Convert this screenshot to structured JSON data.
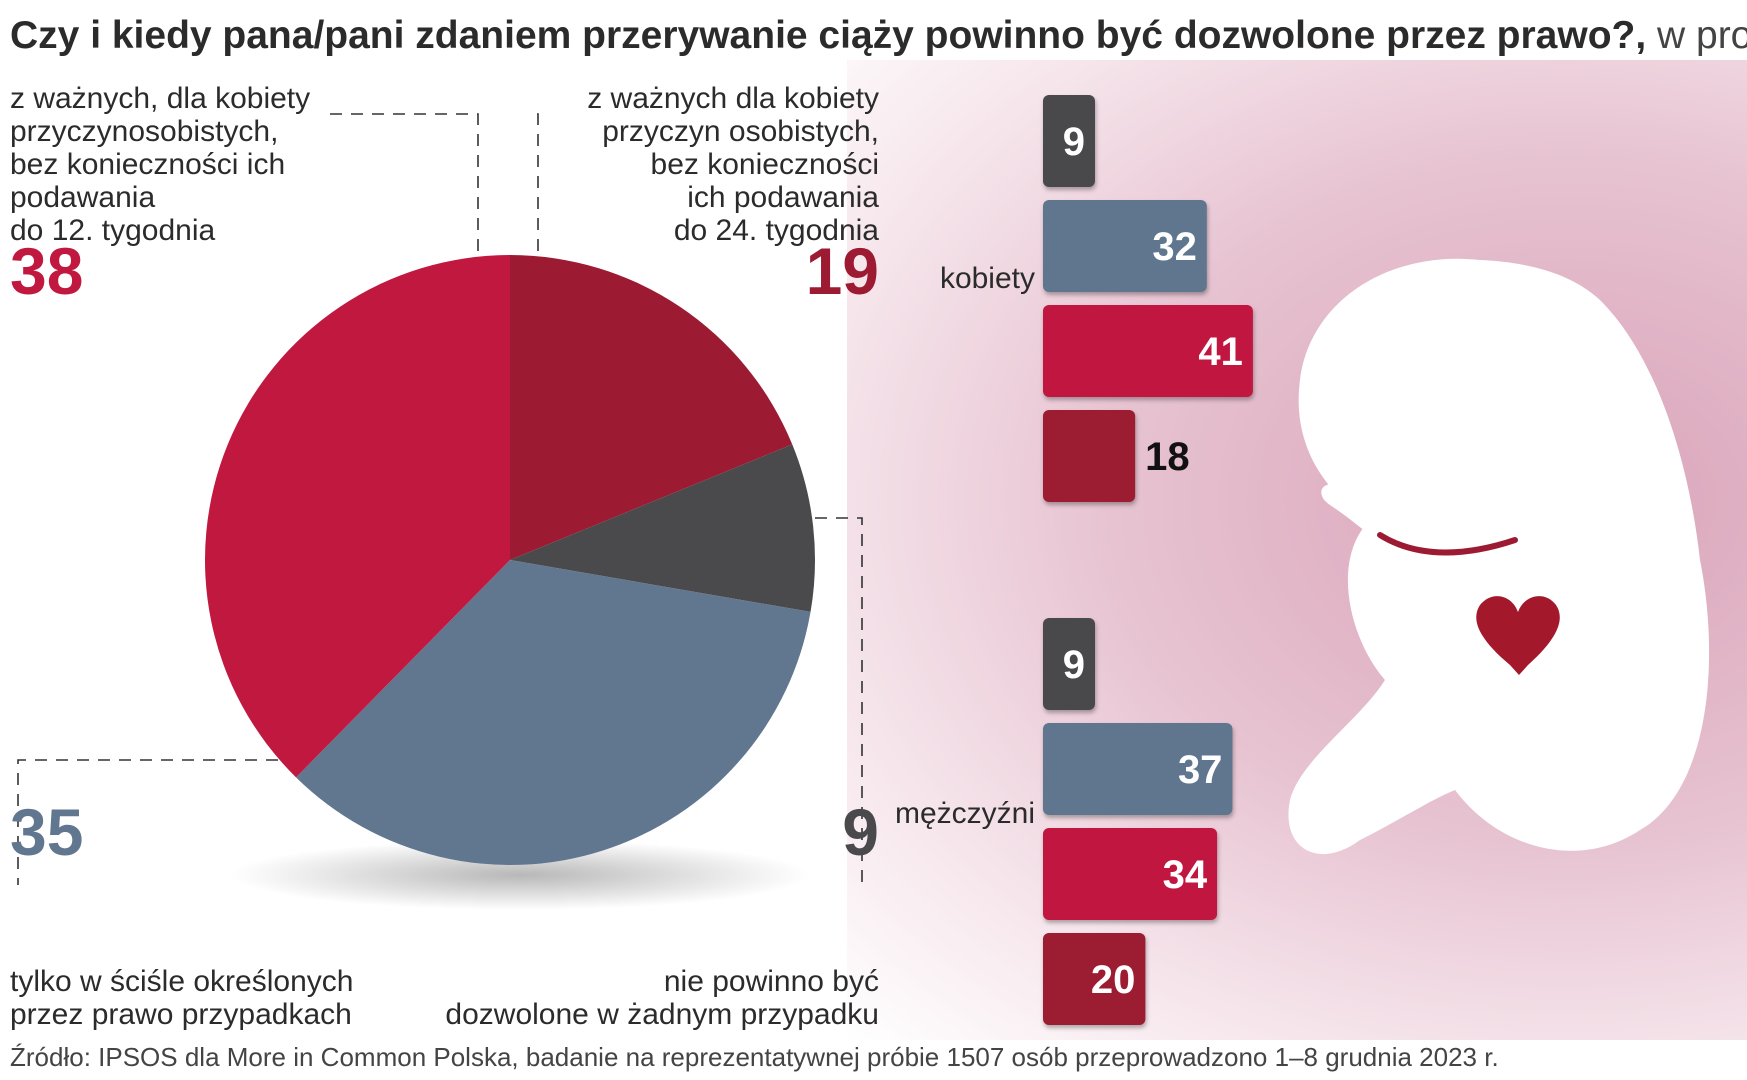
{
  "title": "Czy i kiedy pana/pani zdaniem przerywanie ciąży powinno być dozwolone przez prawo?,",
  "title_unit": " w proc.",
  "source": "Źródło: IPSOS dla More in Common Polska, badanie na reprezentatywnej próbie 1507 osób przeprowadzono 1–8 grudnia 2023 r.",
  "colors": {
    "dark": "#4a4a4c",
    "blue": "#61768f",
    "red": "#c0183f",
    "darkred": "#9c1a32"
  },
  "chart_data": [
    {
      "type": "pie",
      "slices": [
        {
          "key": "darkred",
          "value": 19,
          "label": "z ważnych dla kobiety\nprzyczyn osobistych,\nbez konieczności\nich podawania\ndo 24. tygodnia"
        },
        {
          "key": "dark",
          "value": 9,
          "label": "nie powinno być\ndozwolone w żadnym przypadku"
        },
        {
          "key": "blue",
          "value": 35,
          "label": "tylko w ściśle określonych\nprzez prawo przypadkach"
        },
        {
          "key": "red",
          "value": 38,
          "label": "z ważnych, dla kobiety\nprzyczynosobistych,\nbez konieczności ich\npodawania\ndo 12. tygodnia"
        }
      ]
    },
    {
      "type": "bar",
      "orientation": "horizontal",
      "groups": [
        {
          "name": "kobiety",
          "values": [
            9,
            32,
            41,
            18
          ],
          "keys": [
            "dark",
            "blue",
            "red",
            "darkred"
          ]
        },
        {
          "name": "mężczyźni",
          "values": [
            9,
            37,
            34,
            20
          ],
          "keys": [
            "dark",
            "blue",
            "red",
            "darkred"
          ]
        }
      ]
    }
  ]
}
